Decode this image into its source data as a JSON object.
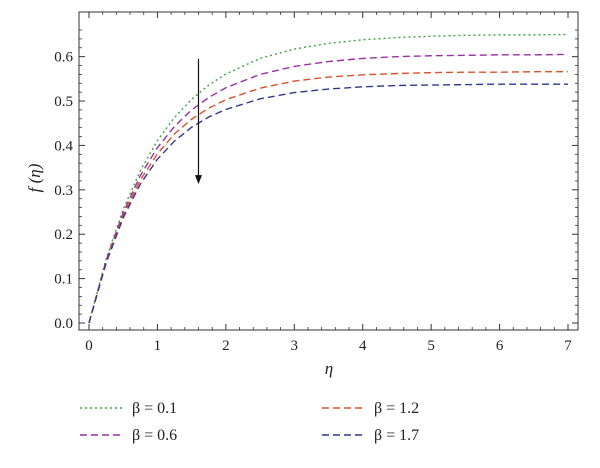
{
  "chart_data": {
    "type": "line",
    "xlabel": "η",
    "ylabel": "f (η)",
    "xlim": [
      0,
      7
    ],
    "ylim": [
      0,
      0.66
    ],
    "x_ticks": [
      "0",
      "1",
      "2",
      "3",
      "4",
      "5",
      "6",
      "7"
    ],
    "y_ticks": [
      "0.0",
      "0.1",
      "0.2",
      "0.3",
      "0.4",
      "0.5",
      "0.6"
    ],
    "grid": false,
    "legend_position": "bottom",
    "series": [
      {
        "name": "β = 0.1",
        "color": "#3aa63a",
        "style": "dotted",
        "x": [
          0,
          0.25,
          0.5,
          0.75,
          1,
          1.25,
          1.5,
          1.75,
          2,
          2.5,
          3,
          3.5,
          4,
          4.5,
          5,
          5.5,
          6,
          6.5,
          7
        ],
        "y": [
          0,
          0.144,
          0.256,
          0.343,
          0.411,
          0.463,
          0.504,
          0.536,
          0.561,
          0.596,
          0.617,
          0.63,
          0.638,
          0.643,
          0.646,
          0.648,
          0.649,
          0.649,
          0.65
        ]
      },
      {
        "name": "β = 0.6",
        "color": "#9b2fa8",
        "style": "dashed",
        "x": [
          0,
          0.25,
          0.5,
          0.75,
          1,
          1.25,
          1.5,
          1.75,
          2,
          2.5,
          3,
          3.5,
          4,
          4.5,
          5,
          5.5,
          6,
          6.5,
          7
        ],
        "y": [
          0,
          0.141,
          0.249,
          0.332,
          0.395,
          0.443,
          0.48,
          0.508,
          0.53,
          0.56,
          0.578,
          0.589,
          0.596,
          0.6,
          0.602,
          0.603,
          0.604,
          0.604,
          0.605
        ]
      },
      {
        "name": "β = 1.2",
        "color": "#d9522b",
        "style": "dashed",
        "x": [
          0,
          0.25,
          0.5,
          0.75,
          1,
          1.25,
          1.5,
          1.75,
          2,
          2.5,
          3,
          3.5,
          4,
          4.5,
          5,
          5.5,
          6,
          6.5,
          7
        ],
        "y": [
          0,
          0.138,
          0.243,
          0.322,
          0.381,
          0.426,
          0.459,
          0.484,
          0.503,
          0.529,
          0.545,
          0.554,
          0.559,
          0.562,
          0.564,
          0.565,
          0.565,
          0.566,
          0.566
        ]
      },
      {
        "name": "β = 1.7",
        "color": "#2e3a8c",
        "style": "dashed",
        "x": [
          0,
          0.25,
          0.5,
          0.75,
          1,
          1.25,
          1.5,
          1.75,
          2,
          2.5,
          3,
          3.5,
          4,
          4.5,
          5,
          5.5,
          6,
          6.5,
          7
        ],
        "y": [
          0,
          0.135,
          0.237,
          0.313,
          0.369,
          0.41,
          0.441,
          0.464,
          0.481,
          0.505,
          0.519,
          0.527,
          0.532,
          0.535,
          0.536,
          0.537,
          0.538,
          0.538,
          0.538
        ]
      }
    ],
    "annotations": [
      {
        "type": "arrow",
        "direction": "down",
        "x": 1.6,
        "y_from": 0.595,
        "y_to": 0.315
      }
    ]
  }
}
